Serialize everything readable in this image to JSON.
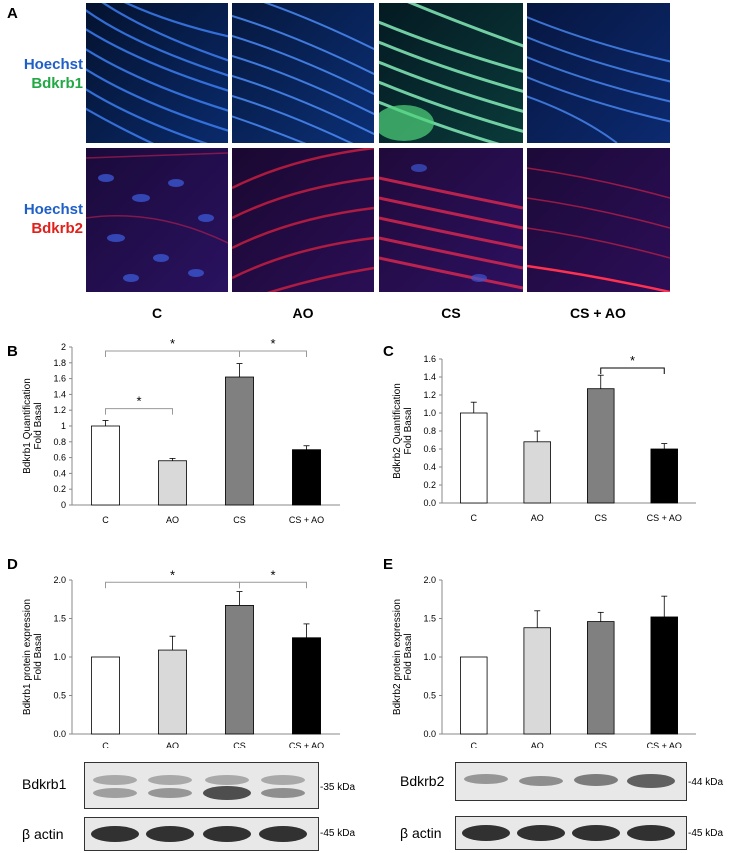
{
  "panel_a": {
    "letter": "A",
    "row1_labels": [
      "Hoechst",
      "Bdkrb1"
    ],
    "row2_labels": [
      "Hoechst",
      "Bdkrb2"
    ],
    "row1_colors": [
      "#1f5fc8",
      "#22a845"
    ],
    "row2_colors": [
      "#1f5fc8",
      "#e0201a"
    ],
    "groups": [
      "C",
      "AO",
      "CS",
      "CS + AO"
    ]
  },
  "panels": {
    "b": "B",
    "c": "C",
    "d": "D",
    "e": "E"
  },
  "chart_data": [
    {
      "id": "B",
      "type": "bar",
      "categories": [
        "C",
        "AO",
        "CS",
        "CS + AO"
      ],
      "values": [
        1.0,
        0.56,
        1.62,
        0.7
      ],
      "errors": [
        0.07,
        0.03,
        0.17,
        0.05
      ],
      "colors": [
        "#ffffff",
        "#d9d9d9",
        "#808080",
        "#000000"
      ],
      "ylabel_lines": [
        "Bdkrb1 Quantification",
        "Fold Basal"
      ],
      "ylim": [
        0,
        2
      ],
      "ticks": [
        "0",
        "0.2",
        "0.4",
        "0.6",
        "0.8",
        "1",
        "1.2",
        "1.4",
        "1.6",
        "1.8",
        "2"
      ],
      "significance": [
        {
          "from": 0,
          "to": 2,
          "label": "*",
          "level": 1.95
        },
        {
          "from": 2,
          "to": 3,
          "label": "*",
          "level": 1.95
        },
        {
          "from": 0,
          "to": 1,
          "label": "*",
          "level": 1.22
        }
      ]
    },
    {
      "id": "C",
      "type": "bar",
      "categories": [
        "C",
        "AO",
        "CS",
        "CS + AO"
      ],
      "values": [
        1.0,
        0.68,
        1.27,
        0.6
      ],
      "errors": [
        0.12,
        0.12,
        0.15,
        0.06
      ],
      "colors": [
        "#ffffff",
        "#d9d9d9",
        "#808080",
        "#000000"
      ],
      "ylabel_lines": [
        "Bdkrb2 Quantification",
        "Fold Basal"
      ],
      "ylim": [
        0,
        1.6
      ],
      "ticks": [
        "0.0",
        "0.2",
        "0.4",
        "0.6",
        "0.8",
        "1.0",
        "1.2",
        "1.4",
        "1.6"
      ],
      "significance": [
        {
          "from": 2,
          "to": 3,
          "label": "*",
          "level": 1.5
        }
      ]
    },
    {
      "id": "D",
      "type": "bar",
      "categories": [
        "C",
        "AO",
        "CS",
        "CS + AO"
      ],
      "values": [
        1.0,
        1.09,
        1.67,
        1.25
      ],
      "errors": [
        0.0,
        0.18,
        0.18,
        0.18
      ],
      "colors": [
        "#ffffff",
        "#d9d9d9",
        "#808080",
        "#000000"
      ],
      "ylabel_lines": [
        "Bdkrb1 protein expression",
        "Fold Basal"
      ],
      "ylim": [
        0,
        2.0
      ],
      "ticks": [
        "0.0",
        "0.5",
        "1.0",
        "1.5",
        "2.0"
      ],
      "significance": [
        {
          "from": 0,
          "to": 2,
          "label": "*",
          "level": 1.97
        },
        {
          "from": 2,
          "to": 3,
          "label": "*",
          "level": 1.97
        }
      ]
    },
    {
      "id": "E",
      "type": "bar",
      "categories": [
        "C",
        "AO",
        "CS",
        "CS + AO"
      ],
      "values": [
        1.0,
        1.38,
        1.46,
        1.52
      ],
      "errors": [
        0.0,
        0.22,
        0.12,
        0.27
      ],
      "colors": [
        "#ffffff",
        "#d9d9d9",
        "#808080",
        "#000000"
      ],
      "ylabel_lines": [
        "Bdkrb2 protein expression",
        "Fold Basal"
      ],
      "ylim": [
        0,
        2.0
      ],
      "ticks": [
        "0.0",
        "0.5",
        "1.0",
        "1.5",
        "2.0"
      ],
      "significance": []
    }
  ],
  "blots": {
    "d_top_label": "Bdkrb1",
    "d_top_kda": "-35 kDa",
    "d_bottom_label": "β actin",
    "d_bottom_kda": "-45 kDa",
    "e_top_label": "Bdkrb2",
    "e_top_kda": "-44 kDa",
    "e_bottom_label": "β actin",
    "e_bottom_kda": "-45 kDa"
  }
}
